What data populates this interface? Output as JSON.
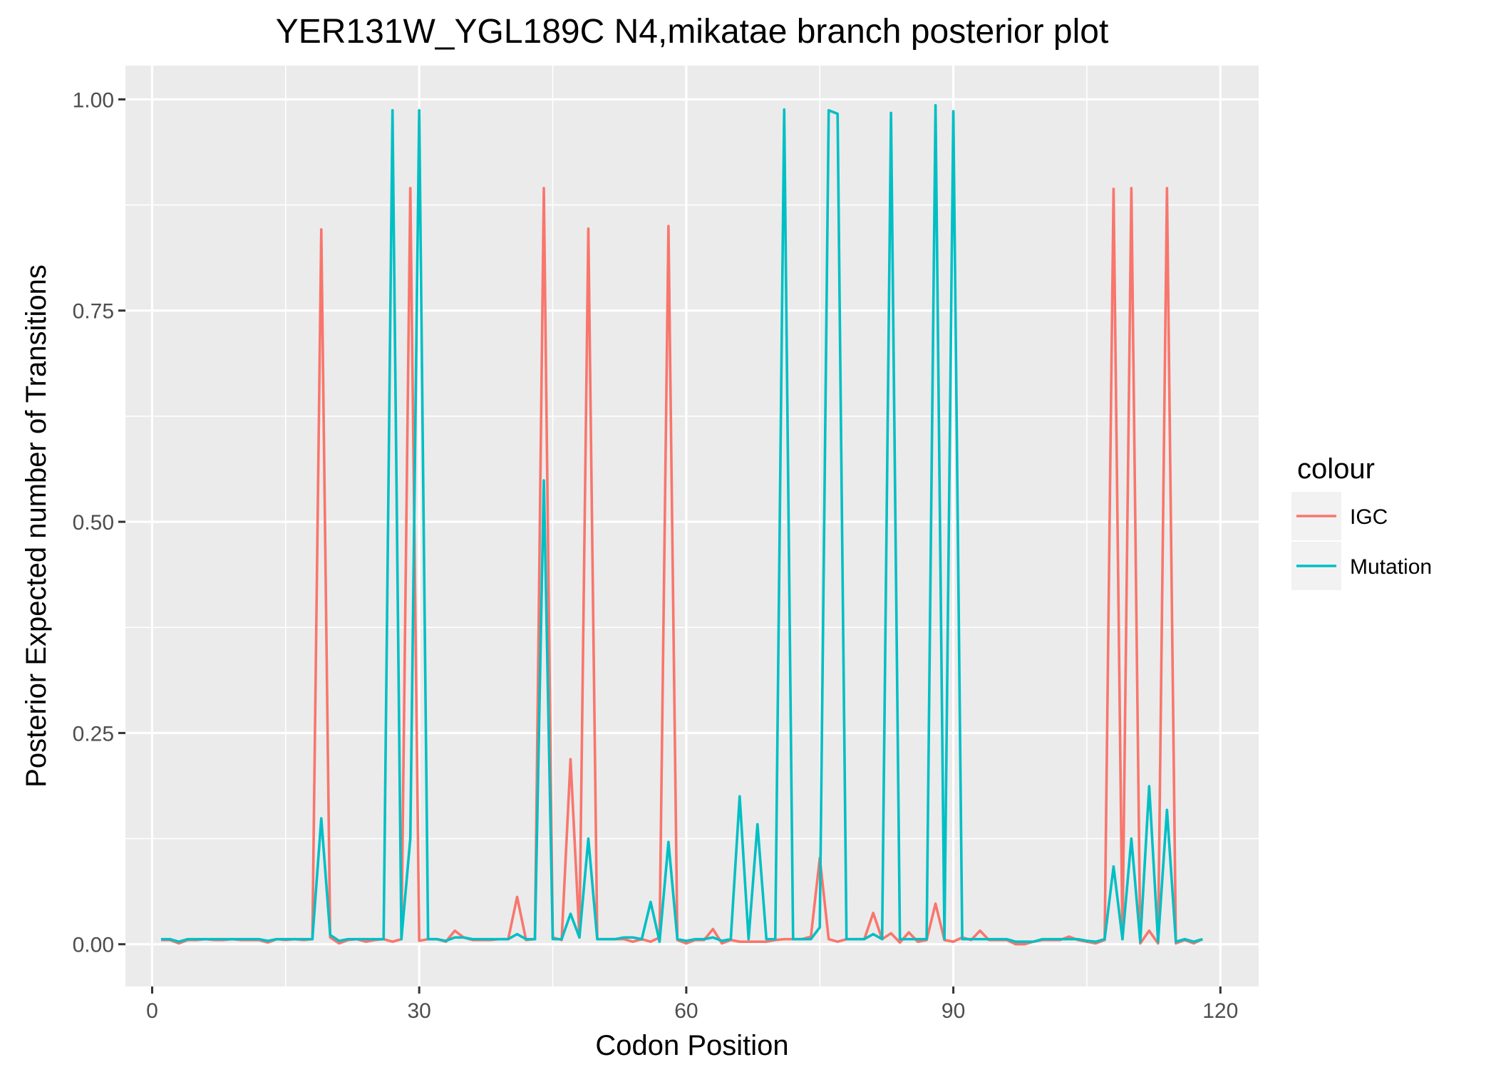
{
  "chart_data": {
    "type": "line",
    "title": "YER131W_YGL189C N4,mikatae branch posterior plot",
    "xlabel": "Codon Position",
    "ylabel": "Posterior Expected number of Transitions",
    "xlim": [
      -3,
      124.3
    ],
    "ylim": [
      -0.05,
      1.04
    ],
    "x_ticks": [
      0,
      30,
      60,
      90,
      120
    ],
    "x_tick_labels": [
      "0",
      "30",
      "60",
      "90",
      "120"
    ],
    "y_ticks": [
      0,
      0.25,
      0.5,
      0.75,
      1
    ],
    "y_tick_labels": [
      "0.00",
      "0.25",
      "0.50",
      "0.75",
      "1.00"
    ],
    "grid": true,
    "legend": {
      "title": "colour",
      "position": "right"
    },
    "x": [
      1,
      2,
      3,
      4,
      5,
      6,
      7,
      8,
      9,
      10,
      11,
      12,
      13,
      14,
      15,
      16,
      17,
      18,
      19,
      20,
      21,
      22,
      23,
      24,
      25,
      26,
      27,
      28,
      29,
      30,
      31,
      32,
      33,
      34,
      35,
      36,
      37,
      38,
      39,
      40,
      41,
      42,
      43,
      44,
      45,
      46,
      47,
      48,
      49,
      50,
      51,
      52,
      53,
      54,
      55,
      56,
      57,
      58,
      59,
      60,
      61,
      62,
      63,
      64,
      65,
      66,
      67,
      68,
      69,
      70,
      71,
      72,
      73,
      74,
      75,
      76,
      77,
      78,
      79,
      80,
      81,
      82,
      83,
      84,
      85,
      86,
      87,
      88,
      89,
      90,
      91,
      92,
      93,
      94,
      95,
      96,
      97,
      98,
      99,
      100,
      101,
      102,
      103,
      104,
      105,
      106,
      107,
      108,
      109,
      110,
      111,
      112,
      113,
      114,
      115,
      116,
      117,
      118
    ],
    "series": [
      {
        "name": "IGC",
        "color": "#F8766D",
        "values": [
          0.005,
          0.005,
          0.001,
          0.005,
          0.005,
          0.006,
          0.005,
          0.005,
          0.006,
          0.005,
          0.005,
          0.005,
          0.002,
          0.006,
          0.005,
          0.006,
          0.005,
          0.006,
          0.846,
          0.008,
          0.001,
          0.005,
          0.006,
          0.003,
          0.005,
          0.006,
          0.003,
          0.006,
          0.895,
          0.004,
          0.006,
          0.006,
          0.003,
          0.016,
          0.008,
          0.005,
          0.005,
          0.005,
          0.006,
          0.006,
          0.056,
          0.005,
          0.006,
          0.895,
          0.008,
          0.005,
          0.219,
          0.008,
          0.847,
          0.006,
          0.006,
          0.006,
          0.006,
          0.003,
          0.006,
          0.003,
          0.008,
          0.85,
          0.005,
          0.001,
          0.005,
          0.005,
          0.018,
          0.001,
          0.005,
          0.003,
          0.003,
          0.003,
          0.003,
          0.005,
          0.006,
          0.006,
          0.006,
          0.009,
          0.102,
          0.006,
          0.003,
          0.006,
          0.006,
          0.006,
          0.037,
          0.006,
          0.013,
          0.002,
          0.014,
          0.003,
          0.005,
          0.048,
          0.005,
          0.003,
          0.008,
          0.005,
          0.016,
          0.005,
          0.005,
          0.005,
          0.0,
          0.0,
          0.003,
          0.005,
          0.005,
          0.005,
          0.009,
          0.005,
          0.003,
          0.001,
          0.005,
          0.894,
          0.006,
          0.895,
          0.001,
          0.016,
          0.001,
          0.895,
          0.001,
          0.005,
          0.001,
          0.006
        ]
      },
      {
        "name": "Mutation",
        "color": "#00BFC4",
        "values": [
          0.006,
          0.006,
          0.003,
          0.006,
          0.006,
          0.006,
          0.006,
          0.006,
          0.006,
          0.006,
          0.006,
          0.006,
          0.004,
          0.006,
          0.006,
          0.006,
          0.006,
          0.006,
          0.149,
          0.011,
          0.004,
          0.006,
          0.006,
          0.006,
          0.006,
          0.006,
          0.987,
          0.006,
          0.125,
          0.987,
          0.006,
          0.006,
          0.004,
          0.008,
          0.008,
          0.006,
          0.006,
          0.006,
          0.006,
          0.006,
          0.012,
          0.006,
          0.006,
          0.549,
          0.006,
          0.006,
          0.036,
          0.008,
          0.125,
          0.006,
          0.006,
          0.006,
          0.008,
          0.008,
          0.006,
          0.05,
          0.003,
          0.121,
          0.006,
          0.004,
          0.006,
          0.006,
          0.008,
          0.004,
          0.006,
          0.175,
          0.006,
          0.142,
          0.006,
          0.006,
          0.988,
          0.006,
          0.006,
          0.006,
          0.02,
          0.987,
          0.983,
          0.006,
          0.006,
          0.006,
          0.012,
          0.006,
          0.984,
          0.006,
          0.006,
          0.006,
          0.006,
          0.993,
          0.006,
          0.986,
          0.006,
          0.006,
          0.006,
          0.006,
          0.006,
          0.006,
          0.003,
          0.003,
          0.003,
          0.006,
          0.006,
          0.006,
          0.006,
          0.006,
          0.004,
          0.003,
          0.006,
          0.092,
          0.006,
          0.125,
          0.003,
          0.187,
          0.003,
          0.159,
          0.003,
          0.006,
          0.003,
          0.006
        ]
      }
    ]
  }
}
